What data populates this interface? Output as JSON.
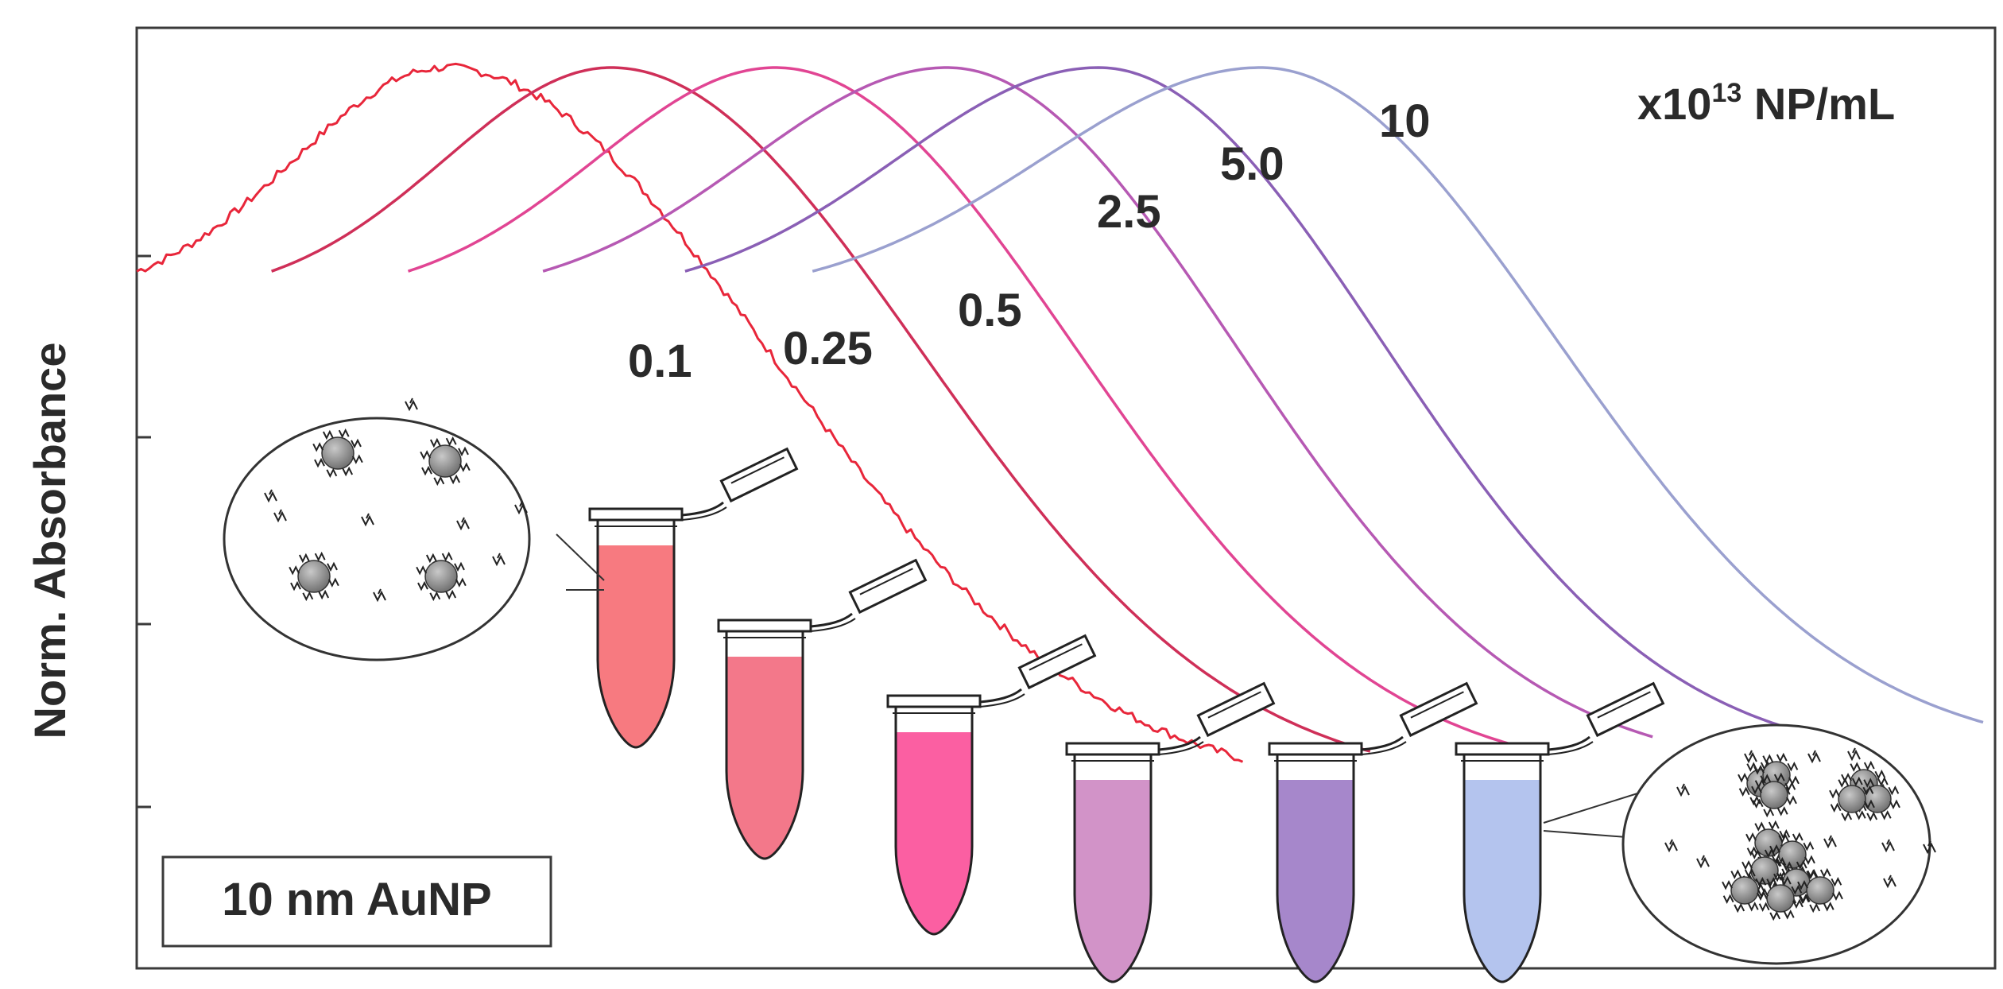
{
  "chart_data": {
    "type": "line",
    "title": "",
    "xlabel": "",
    "ylabel": "Norm. Absorbance",
    "unit_label": {
      "prefix": "x10",
      "exponent": "13",
      "suffix": " NP/mL"
    },
    "inset_label": "10 nm AuNP",
    "x_range": [
      0,
      100
    ],
    "y_range": [
      0,
      1
    ],
    "grid": false,
    "series": [
      {
        "name": "0.1",
        "color": "#e8263a",
        "tube_color": "#f77a80",
        "peak_x": 16.7,
        "start_x": 0.0,
        "end_x": 59.9,
        "start_y": 0.72,
        "end_y": 0.05,
        "noisy": true
      },
      {
        "name": "0.25",
        "color": "#cf2f58",
        "tube_color": "#f3788a",
        "peak_x": 25.7,
        "start_x": 7.3,
        "end_x": 66.8,
        "start_y": 0.72,
        "end_y": 0.06,
        "noisy": false
      },
      {
        "name": "0.5",
        "color": "#e14593",
        "tube_color": "#fb5fa2",
        "peak_x": 34.6,
        "start_x": 14.7,
        "end_x": 74.4,
        "start_y": 0.72,
        "end_y": 0.07,
        "noisy": false
      },
      {
        "name": "2.5",
        "color": "#b659b3",
        "tube_color": "#d293c8",
        "peak_x": 43.9,
        "start_x": 22.0,
        "end_x": 82.1,
        "start_y": 0.72,
        "end_y": 0.08,
        "noisy": false
      },
      {
        "name": "5.0",
        "color": "#8a5fb5",
        "tube_color": "#a687cb",
        "peak_x": 52.1,
        "start_x": 29.7,
        "end_x": 89.7,
        "start_y": 0.72,
        "end_y": 0.09,
        "noisy": false
      },
      {
        "name": "10",
        "color": "#9aa0cf",
        "tube_color": "#b4c4ee",
        "peak_x": 60.9,
        "start_x": 36.6,
        "end_x": 100,
        "start_y": 0.72,
        "end_y": 0.1,
        "noisy": false
      }
    ]
  }
}
